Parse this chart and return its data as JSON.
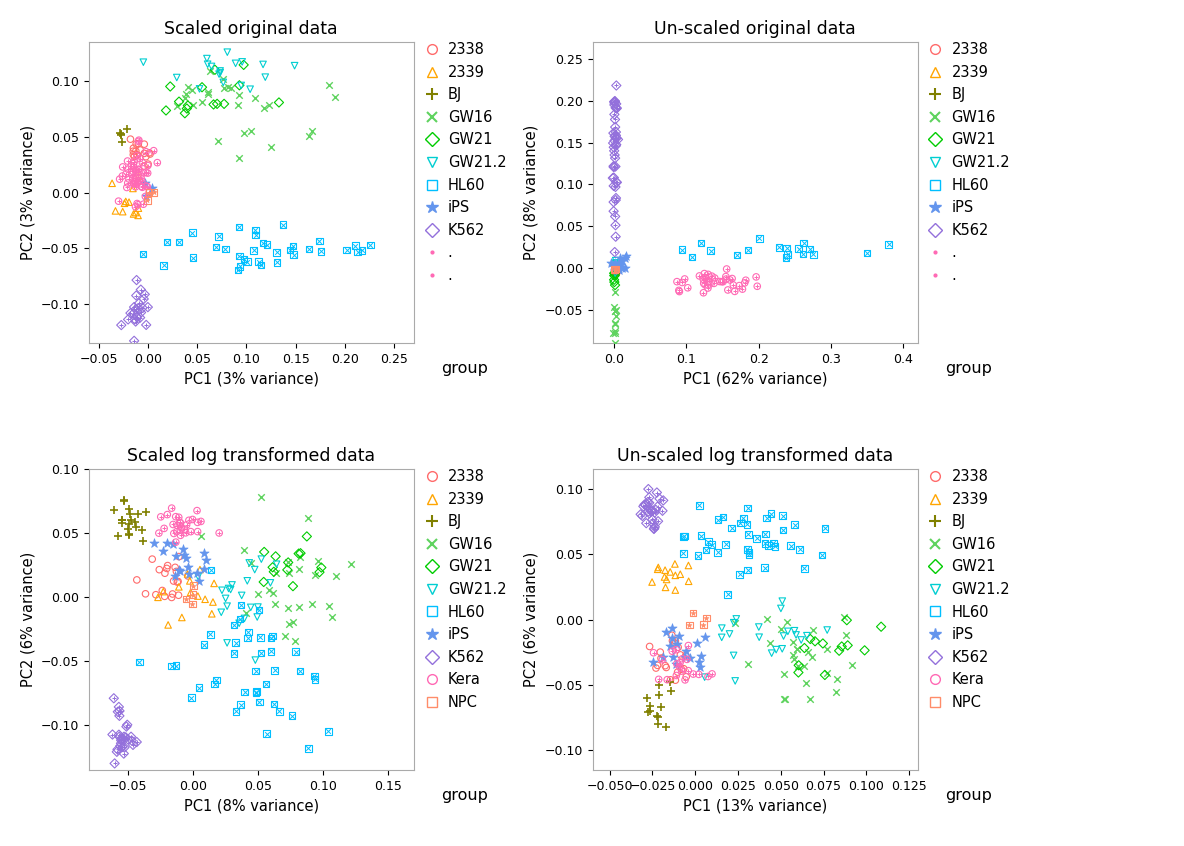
{
  "groups": [
    "2338",
    "2339",
    "BJ",
    "GW16",
    "GW21",
    "GW21.2",
    "HL60",
    "iPS",
    "K562",
    "Kera",
    "NPC"
  ],
  "group_colors": {
    "2338": "#FF6B6B",
    "2339": "#FFA500",
    "BJ": "#808000",
    "GW16": "#5FD35F",
    "GW21": "#00CC00",
    "GW21.2": "#00CED1",
    "HL60": "#00BFFF",
    "iPS": "#6495ED",
    "K562": "#9370DB",
    "Kera": "#FF69B4",
    "NPC": "#FF8C69"
  },
  "plots": [
    {
      "title": "Scaled original data",
      "xlabel": "PC1 (3% variance)",
      "ylabel": "PC2 (3% variance)",
      "xlim": [
        -0.06,
        0.27
      ],
      "ylim": [
        -0.135,
        0.135
      ],
      "xticks": [
        -0.05,
        0.0,
        0.05,
        0.1,
        0.15,
        0.2
      ],
      "yticks": [
        -0.1,
        -0.05,
        0.0,
        0.05,
        0.1
      ],
      "legend_groups": [
        "2338",
        "2339",
        "BJ",
        "GW16",
        "GW21",
        "GW21.2",
        "HL60",
        "iPS",
        "K562",
        ".",
        "."
      ]
    },
    {
      "title": "Un-scaled original data",
      "xlabel": "PC1 (62% variance)",
      "ylabel": "PC2 (8% variance)",
      "xlim": [
        -0.03,
        0.42
      ],
      "ylim": [
        -0.09,
        0.27
      ],
      "xticks": [
        0.0,
        0.1,
        0.2,
        0.3,
        0.4
      ],
      "yticks": [
        0.0,
        0.05,
        0.1,
        0.15,
        0.2,
        0.25
      ],
      "legend_groups": [
        "2338",
        "2339",
        "BJ",
        "GW16",
        "GW21",
        "GW21.2",
        "HL60",
        "iPS",
        "K562",
        ".",
        "."
      ]
    },
    {
      "title": "Scaled log transformed data",
      "xlabel": "PC1 (8% variance)",
      "ylabel": "PC2 (6% variance)",
      "xlim": [
        -0.08,
        0.17
      ],
      "ylim": [
        -0.135,
        0.1
      ],
      "xticks": [
        -0.05,
        0.0,
        0.05,
        0.1,
        0.15
      ],
      "yticks": [
        -0.1,
        -0.05,
        0.0,
        0.05
      ],
      "legend_groups": [
        "2338",
        "2339",
        "BJ",
        "GW16",
        "GW21",
        "GW21.2",
        "HL60",
        "iPS",
        "K562",
        "Kera",
        "NPC"
      ]
    },
    {
      "title": "Un-scaled log transformed data",
      "xlabel": "PC1 (13% variance)",
      "ylabel": "PC2 (6% variance)",
      "xlim": [
        -0.06,
        0.13
      ],
      "ylim": [
        -0.115,
        0.115
      ],
      "xticks": [
        -0.05,
        0.0,
        0.05,
        0.1
      ],
      "yticks": [
        -0.1,
        -0.05,
        0.0,
        0.05,
        0.1
      ],
      "legend_groups": [
        "2338",
        "2339",
        "BJ",
        "GW16",
        "GW21",
        "GW21.2",
        "HL60",
        "iPS",
        "K562",
        "Kera",
        "NPC"
      ]
    }
  ]
}
